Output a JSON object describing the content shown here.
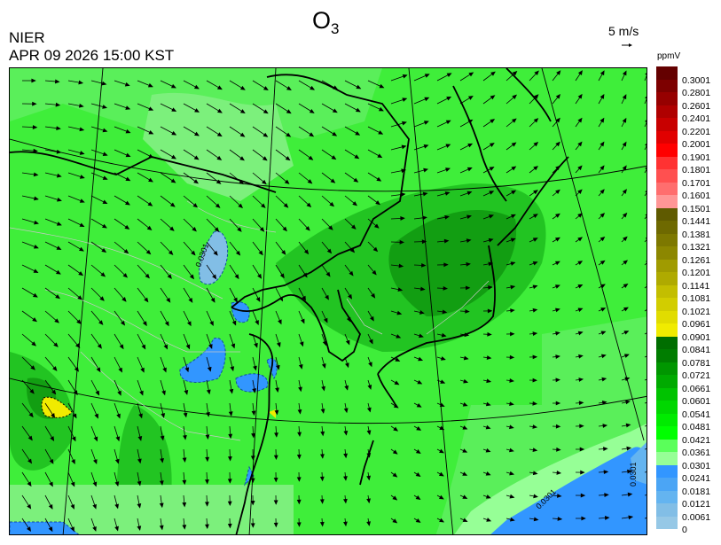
{
  "header": {
    "title_main": "O",
    "title_sub": "3",
    "organization": "NIER",
    "datetime": "APR 09 2026 15:00 KST",
    "reference_vector": "5 m/s"
  },
  "map": {
    "background_color": "#3fee3a",
    "contour_labels": [
      "0.0301",
      "0.0301",
      "0.0301"
    ]
  },
  "colorbar": {
    "unit": "ppmV",
    "labels": [
      "0.3001",
      "0.2801",
      "0.2601",
      "0.2401",
      "0.2201",
      "0.2001",
      "0.1901",
      "0.1801",
      "0.1701",
      "0.1601",
      "0.1501",
      "0.1441",
      "0.1381",
      "0.1321",
      "0.1261",
      "0.1201",
      "0.1141",
      "0.1081",
      "0.1021",
      "0.0961",
      "0.0901",
      "0.0841",
      "0.0781",
      "0.0721",
      "0.0661",
      "0.0601",
      "0.0541",
      "0.0481",
      "0.0421",
      "0.0361",
      "0.0301",
      "0.0241",
      "0.0181",
      "0.0121",
      "0.0061",
      "0"
    ],
    "colors": [
      "#640000",
      "#7d0000",
      "#960000",
      "#af0000",
      "#c80000",
      "#e10000",
      "#ff0000",
      "#ff3232",
      "#ff5050",
      "#ff6e6e",
      "#ff9696",
      "#5f5a00",
      "#6e6900",
      "#7d7800",
      "#8c8700",
      "#a09b00",
      "#afaa00",
      "#c3be00",
      "#d2cd00",
      "#e1dc00",
      "#f0eb00",
      "#006e00",
      "#007d00",
      "#009600",
      "#00aa00",
      "#00c300",
      "#00d700",
      "#00eb00",
      "#00ff00",
      "#5aff5a",
      "#96ff96",
      "#3296ff",
      "#4ba5f5",
      "#64b4f0",
      "#82bee6",
      "#96c8e6"
    ]
  }
}
